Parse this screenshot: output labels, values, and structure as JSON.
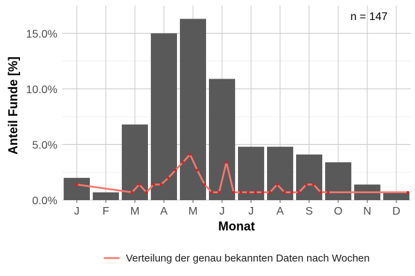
{
  "chart_data": {
    "type": "bar",
    "xlabel": "Monat",
    "ylabel": "Anteil Funde [%]",
    "ylim": [
      0,
      17.5
    ],
    "y_ticks": [
      0,
      5,
      10,
      15
    ],
    "y_tick_labels": [
      "0.0%",
      "5.0%",
      "10.0%",
      "15.0%"
    ],
    "grid": true,
    "categories": [
      "J",
      "F",
      "M",
      "A",
      "M",
      "J",
      "J",
      "A",
      "S",
      "O",
      "N",
      "D"
    ],
    "series": [
      {
        "type": "bar",
        "values": [
          2.0,
          0.7,
          6.8,
          15.0,
          16.3,
          10.9,
          4.8,
          4.8,
          4.1,
          3.4,
          1.4,
          0.7
        ],
        "color": "#595959"
      },
      {
        "type": "line",
        "name": "Verteilung der genau bekannten Daten nach Wochen",
        "color": "#f8766d",
        "marker_color": "#e41a1c",
        "x": [
          1.0,
          2.9,
          3.15,
          3.4,
          3.65,
          3.9,
          4.15,
          4.4,
          4.65,
          4.9,
          5.15,
          5.4,
          5.65,
          5.9,
          6.15,
          6.4,
          6.65,
          6.9,
          7.15,
          7.4,
          7.65,
          7.9,
          8.15,
          8.4,
          8.65,
          8.9,
          9.15,
          9.4,
          9.65,
          12.4
        ],
        "y": [
          1.4,
          0.7,
          1.4,
          0.7,
          1.4,
          1.4,
          2.0,
          2.7,
          3.4,
          4.1,
          2.7,
          1.4,
          0.7,
          0.7,
          3.4,
          0.7,
          0.7,
          0.7,
          0.7,
          0.7,
          0.7,
          1.4,
          0.7,
          0.7,
          0.7,
          1.4,
          1.4,
          0.7,
          0.7,
          0.7
        ]
      }
    ],
    "annotation": "n = 147",
    "legend_position": "bottom"
  }
}
